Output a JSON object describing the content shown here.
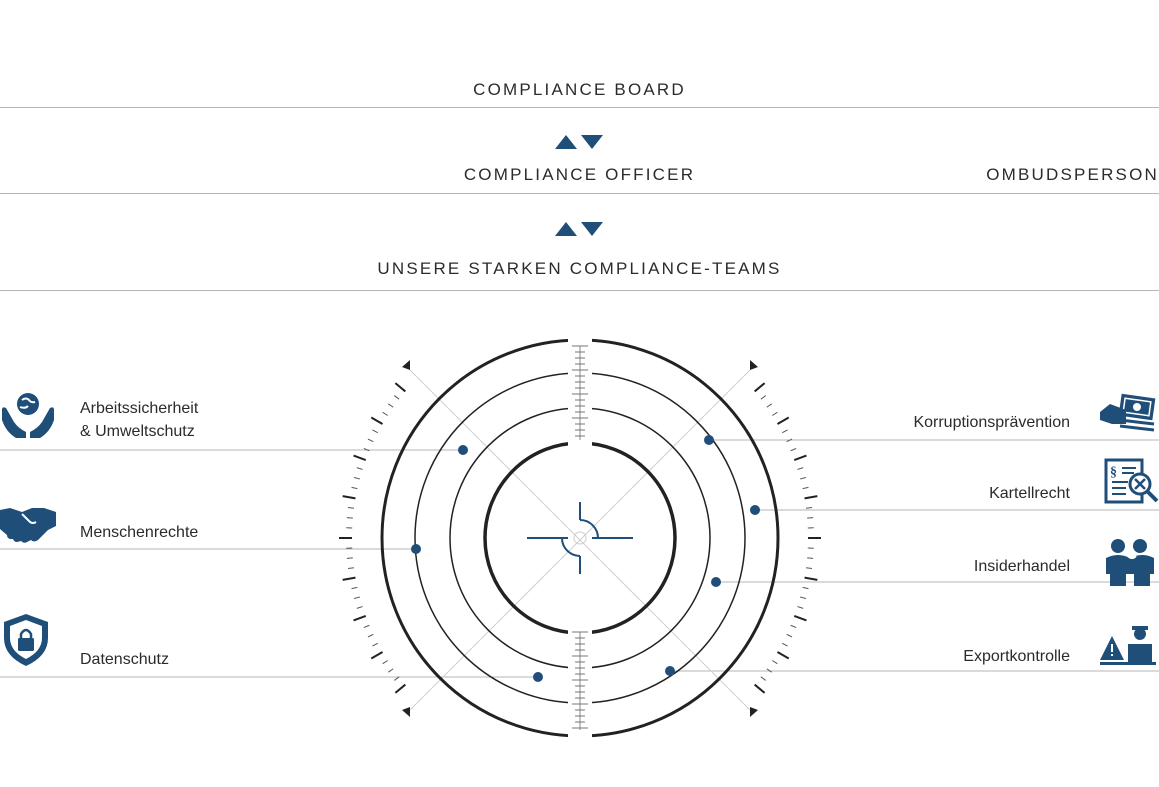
{
  "levels": {
    "board": "COMPLIANCE BOARD",
    "officer": "COMPLIANCE OFFICER",
    "ombudsperson": "OMBUDSPERSON",
    "teams": "UNSERE STARKEN COMPLIANCE-TEAMS"
  },
  "areas_left": [
    {
      "line1": "Arbeitssicherheit",
      "line2": "& Umweltschutz",
      "icon": "hands-globe-icon"
    },
    {
      "line1": "Menschenrechte",
      "icon": "handshake-icon"
    },
    {
      "line1": "Datenschutz",
      "icon": "shield-lock-icon"
    }
  ],
  "areas_right": [
    {
      "label": "Korruptionsprävention",
      "icon": "money-hand-icon"
    },
    {
      "label": "Kartellrecht",
      "icon": "document-magnifier-icon"
    },
    {
      "label": "Insiderhandel",
      "icon": "people-icon"
    },
    {
      "label": "Exportkontrolle",
      "icon": "warning-customs-icon"
    }
  ],
  "colors": {
    "accent": "#1f4e79",
    "ring": "#222222",
    "line": "#b5b5b5"
  }
}
